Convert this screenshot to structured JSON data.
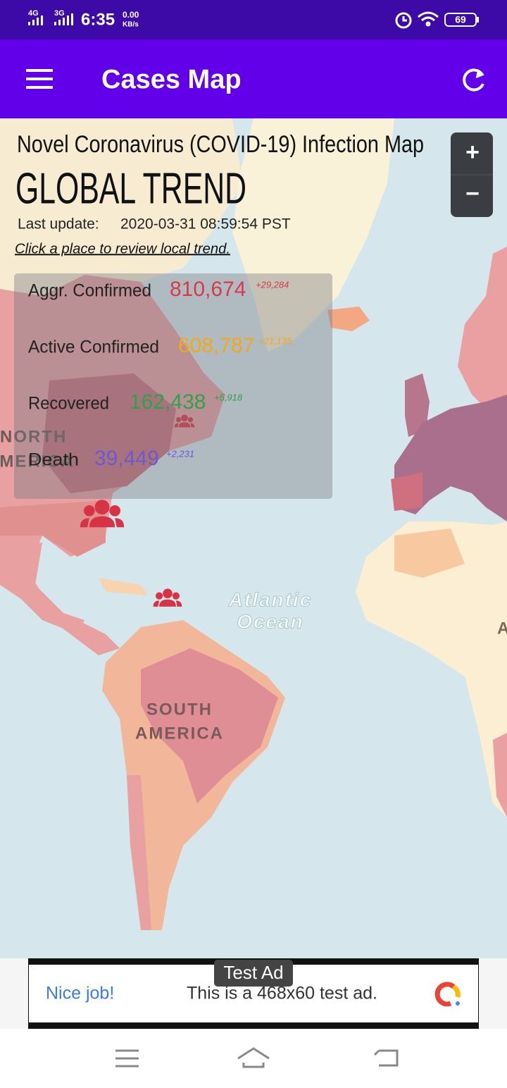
{
  "status_bar": {
    "network_1": "4G",
    "network_2": "3G",
    "time": "6:35",
    "speed": "0.00",
    "speed_unit": "KB/s",
    "battery": "69"
  },
  "app_bar": {
    "title": "Cases Map"
  },
  "map": {
    "title": "Novel Coronavirus (COVID-19) Infection Map",
    "heading": "GLOBAL TREND",
    "last_update_label": "Last update:",
    "last_update": "2020-03-31 08:59:54 PST",
    "hint": "Click a place to review local trend.",
    "stats": [
      {
        "label": "Aggr. Confirmed",
        "value": "810,674",
        "delta": "+29,284"
      },
      {
        "label": "Active Confirmed",
        "value": "608,787",
        "delta": "+21,135"
      },
      {
        "label": "Recovered",
        "value": "162,438",
        "delta": "+5,918"
      },
      {
        "label": "Death",
        "value": "39,449",
        "delta": "+2,231"
      }
    ],
    "zoom_in": "+",
    "zoom_out": "−",
    "place_labels": [
      "NORTH",
      "AMERICA",
      "Atlantic",
      "Ocean",
      "SOUTH",
      "AMERICA",
      "A"
    ]
  },
  "ad": {
    "badge": "Test Ad",
    "headline": "Nice job!",
    "body": "This is a 468x60 test ad."
  }
}
